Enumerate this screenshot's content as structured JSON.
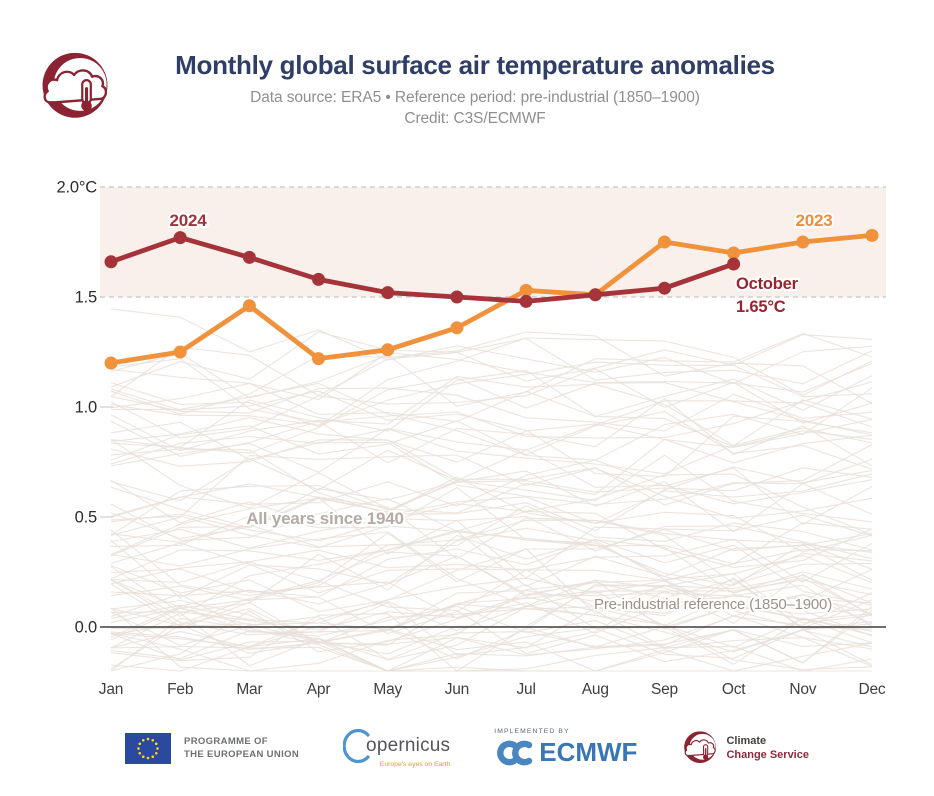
{
  "header": {
    "title": "Monthly global surface air temperature anomalies",
    "subtitle_line1": "Data source: ERA5 • Reference period: pre-industrial (1850–1900)",
    "subtitle_line2": "Credit: C3S/ECMWF"
  },
  "chart_data": {
    "type": "line",
    "title": "Monthly global surface air temperature anomalies",
    "categories": [
      "Jan",
      "Feb",
      "Mar",
      "Apr",
      "May",
      "Jun",
      "Jul",
      "Aug",
      "Sep",
      "Oct",
      "Nov",
      "Dec"
    ],
    "ylim": [
      -0.25,
      2.05
    ],
    "yticks": [
      {
        "v": 0.0,
        "label": "0.0"
      },
      {
        "v": 0.5,
        "label": "0.5"
      },
      {
        "v": 1.0,
        "label": "1.0"
      },
      {
        "v": 1.5,
        "label": "1.5"
      },
      {
        "v": 2.0,
        "label": "2.0°C"
      }
    ],
    "grid": "dashed lines at 1.5 and 2.0, solid zero line, shaded band 1.5–2.0",
    "legend_position": "inline labels on lines",
    "band": {
      "from": 1.5,
      "to": 2.0,
      "fill": "#f9f0eb"
    },
    "series": [
      {
        "name": "2023",
        "color": "#f0913c",
        "label_color": "#ef8e38",
        "values": [
          1.2,
          1.25,
          1.46,
          1.22,
          1.26,
          1.36,
          1.53,
          1.51,
          1.75,
          1.7,
          1.75,
          1.78
        ]
      },
      {
        "name": "2024",
        "color": "#a5343a",
        "label_color": "#a2333a",
        "values": [
          1.66,
          1.77,
          1.68,
          1.58,
          1.52,
          1.5,
          1.48,
          1.51,
          1.54,
          1.65,
          null,
          null
        ]
      }
    ],
    "annotations": {
      "label_2024": "2024",
      "label_2023": "2023",
      "october_line1": "October",
      "october_line2": "1.65°C",
      "all_years": "All years since 1940",
      "preindustrial": "Pre-industrial reference (1850–1900)"
    },
    "background_series": {
      "label": "All years since 1940",
      "count": 83,
      "min": -0.2,
      "max": 1.52,
      "color": "#e9dfd9",
      "seed": 7
    }
  },
  "footer": {
    "eu": {
      "line1": "PROGRAMME OF",
      "line2": "THE EUROPEAN UNION"
    },
    "copernicus": {
      "name": "opernicus",
      "tagline": "Europe's eyes on Earth"
    },
    "ecmwf": {
      "implemented_by": "IMPLEMENTED BY",
      "name": "ECMWF"
    },
    "c3s": {
      "line1": "Climate",
      "line2": "Change Service"
    }
  },
  "colors": {
    "title": "#2f3e66",
    "subtitle": "#8f8f8f",
    "series_2024": "#a5343a",
    "series_2023": "#f0913c",
    "annotation_october": "#96252f",
    "band_fill": "#f9f0eb",
    "dashed_grid": "#c7c7c7",
    "background_lines": "#e9dfd9",
    "zero_line": "#3e3e3e",
    "axis_text": "#2d2d2d",
    "all_years_text": "#b5aba6",
    "preindustrial_text": "#9c918b",
    "c3s_maroon": "#8c2332",
    "eu_blue": "#2a4a9f",
    "eu_star_yellow": "#ffd617",
    "ecmwf_blue": "#3a76b6",
    "copernicus_blue": "#4e95cf"
  }
}
